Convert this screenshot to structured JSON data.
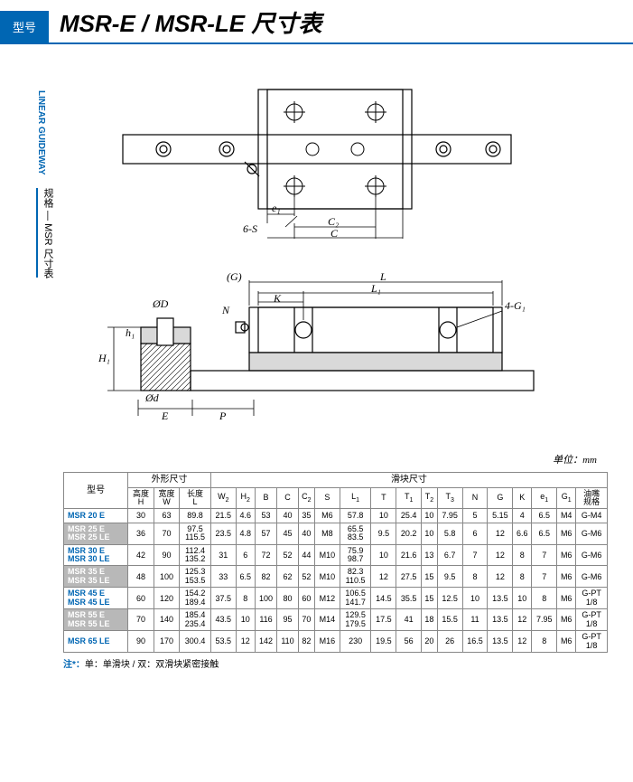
{
  "header": {
    "type_label": "型号",
    "title": "MSR-E / MSR-LE 尺寸表"
  },
  "side": {
    "en": "LINEAR GUIDEWAY",
    "cn": "规格 — MSR 尺寸表"
  },
  "unit": "单位：mm",
  "diagram": {
    "top": {
      "labels": {
        "e1": "e₁",
        "6S": "6-S",
        "C2": "C₂",
        "C": "C"
      }
    },
    "side": {
      "labels": {
        "G": "(G)",
        "L": "L",
        "K": "K",
        "L1": "L₁",
        "4G1": "4-G₁",
        "OD": "ØD",
        "N": "N",
        "H1": "H₁",
        "h1": "h₁",
        "Od": "Ød",
        "E": "E",
        "P": "P"
      }
    }
  },
  "table": {
    "group_headers": {
      "model": "型号",
      "outer": "外形尺寸",
      "block": "滑块尺寸"
    },
    "cols": [
      "高度\nH",
      "宽度\nW",
      "长度\nL",
      "W₂",
      "H₂",
      "B",
      "C",
      "C₂",
      "S",
      "L₁",
      "T",
      "T₁",
      "T₂",
      "T₃",
      "N",
      "G",
      "K",
      "e₁",
      "G₁",
      "油嘴\n规格"
    ],
    "rows": [
      {
        "style": "blue",
        "model": [
          "MSR 20 E"
        ],
        "v": [
          "30",
          "63",
          "89.8",
          "21.5",
          "4.6",
          "53",
          "40",
          "35",
          "M6",
          "57.8",
          "10",
          "25.4",
          "10",
          "7.95",
          "5",
          "5.15",
          "4",
          "6.5",
          "M4",
          "G-M4"
        ]
      },
      {
        "style": "gray",
        "model": [
          "MSR 25 E",
          "MSR 25 LE"
        ],
        "v": [
          "36",
          "70",
          "97.5\n115.5",
          "23.5",
          "4.8",
          "57",
          "45",
          "40",
          "M8",
          "65.5\n83.5",
          "9.5",
          "20.2",
          "10",
          "5.8",
          "6",
          "12",
          "6.6",
          "6.5",
          "M6",
          "G-M6"
        ]
      },
      {
        "style": "blue",
        "model": [
          "MSR 30 E",
          "MSR 30 LE"
        ],
        "v": [
          "42",
          "90",
          "112.4\n135.2",
          "31",
          "6",
          "72",
          "52",
          "44",
          "M10",
          "75.9\n98.7",
          "10",
          "21.6",
          "13",
          "6.7",
          "7",
          "12",
          "8",
          "7",
          "M6",
          "G-M6"
        ]
      },
      {
        "style": "gray",
        "model": [
          "MSR 35 E",
          "MSR 35 LE"
        ],
        "v": [
          "48",
          "100",
          "125.3\n153.5",
          "33",
          "6.5",
          "82",
          "62",
          "52",
          "M10",
          "82.3\n110.5",
          "12",
          "27.5",
          "15",
          "9.5",
          "8",
          "12",
          "8",
          "7",
          "M6",
          "G-M6"
        ]
      },
      {
        "style": "blue",
        "model": [
          "MSR 45 E",
          "MSR 45 LE"
        ],
        "v": [
          "60",
          "120",
          "154.2\n189.4",
          "37.5",
          "8",
          "100",
          "80",
          "60",
          "M12",
          "106.5\n141.7",
          "14.5",
          "35.5",
          "15",
          "12.5",
          "10",
          "13.5",
          "10",
          "8",
          "M6",
          "G-PT\n1/8"
        ]
      },
      {
        "style": "gray",
        "model": [
          "MSR 55 E",
          "MSR 55 LE"
        ],
        "v": [
          "70",
          "140",
          "185.4\n235.4",
          "43.5",
          "10",
          "116",
          "95",
          "70",
          "M14",
          "129.5\n179.5",
          "17.5",
          "41",
          "18",
          "15.5",
          "11",
          "13.5",
          "12",
          "7.95",
          "M6",
          "G-PT\n1/8"
        ]
      },
      {
        "style": "blue",
        "model": [
          "MSR 65 LE"
        ],
        "v": [
          "90",
          "170",
          "300.4",
          "53.5",
          "12",
          "142",
          "110",
          "82",
          "M16",
          "230",
          "19.5",
          "56",
          "20",
          "26",
          "16.5",
          "13.5",
          "12",
          "8",
          "M6",
          "G-PT\n1/8"
        ]
      }
    ]
  },
  "footnote": {
    "label": "注*：",
    "text": "单：单滑块 / 双：双滑块紧密接触"
  }
}
